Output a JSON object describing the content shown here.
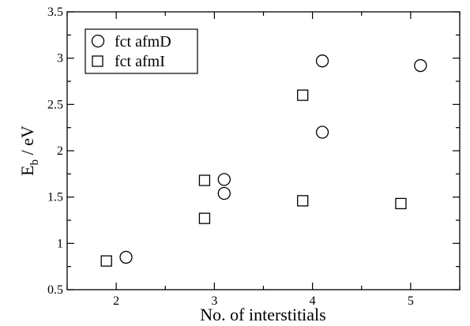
{
  "chart_data": {
    "type": "scatter",
    "title": "",
    "xlabel": "No. of interstitials",
    "ylabel_main": "E",
    "ylabel_sub": "b",
    "ylabel_rest": " / eV",
    "xlim": [
      1.5,
      5.5
    ],
    "ylim": [
      0.5,
      3.5
    ],
    "xticks": [
      2,
      3,
      4,
      5
    ],
    "xtick_labels": [
      "2",
      "3",
      "4",
      "5"
    ],
    "yticks": [
      0.5,
      1,
      1.5,
      2,
      2.5,
      3,
      3.5
    ],
    "ytick_labels": [
      "0.5",
      "1",
      "1.5",
      "2",
      "2.5",
      "3",
      "3.5"
    ],
    "grid": false,
    "legend_position": "top-left",
    "series": [
      {
        "name": "fct afmD",
        "marker": "circle",
        "points": [
          {
            "x": 2.1,
            "y": 0.85
          },
          {
            "x": 3.1,
            "y": 1.69
          },
          {
            "x": 3.1,
            "y": 1.54
          },
          {
            "x": 4.1,
            "y": 2.97
          },
          {
            "x": 4.1,
            "y": 2.2
          },
          {
            "x": 5.1,
            "y": 2.92
          }
        ]
      },
      {
        "name": "fct afmI",
        "marker": "square",
        "points": [
          {
            "x": 1.9,
            "y": 0.81
          },
          {
            "x": 2.9,
            "y": 1.68
          },
          {
            "x": 2.9,
            "y": 1.27
          },
          {
            "x": 3.9,
            "y": 2.6
          },
          {
            "x": 3.9,
            "y": 1.46
          },
          {
            "x": 4.9,
            "y": 1.43
          }
        ]
      }
    ]
  }
}
